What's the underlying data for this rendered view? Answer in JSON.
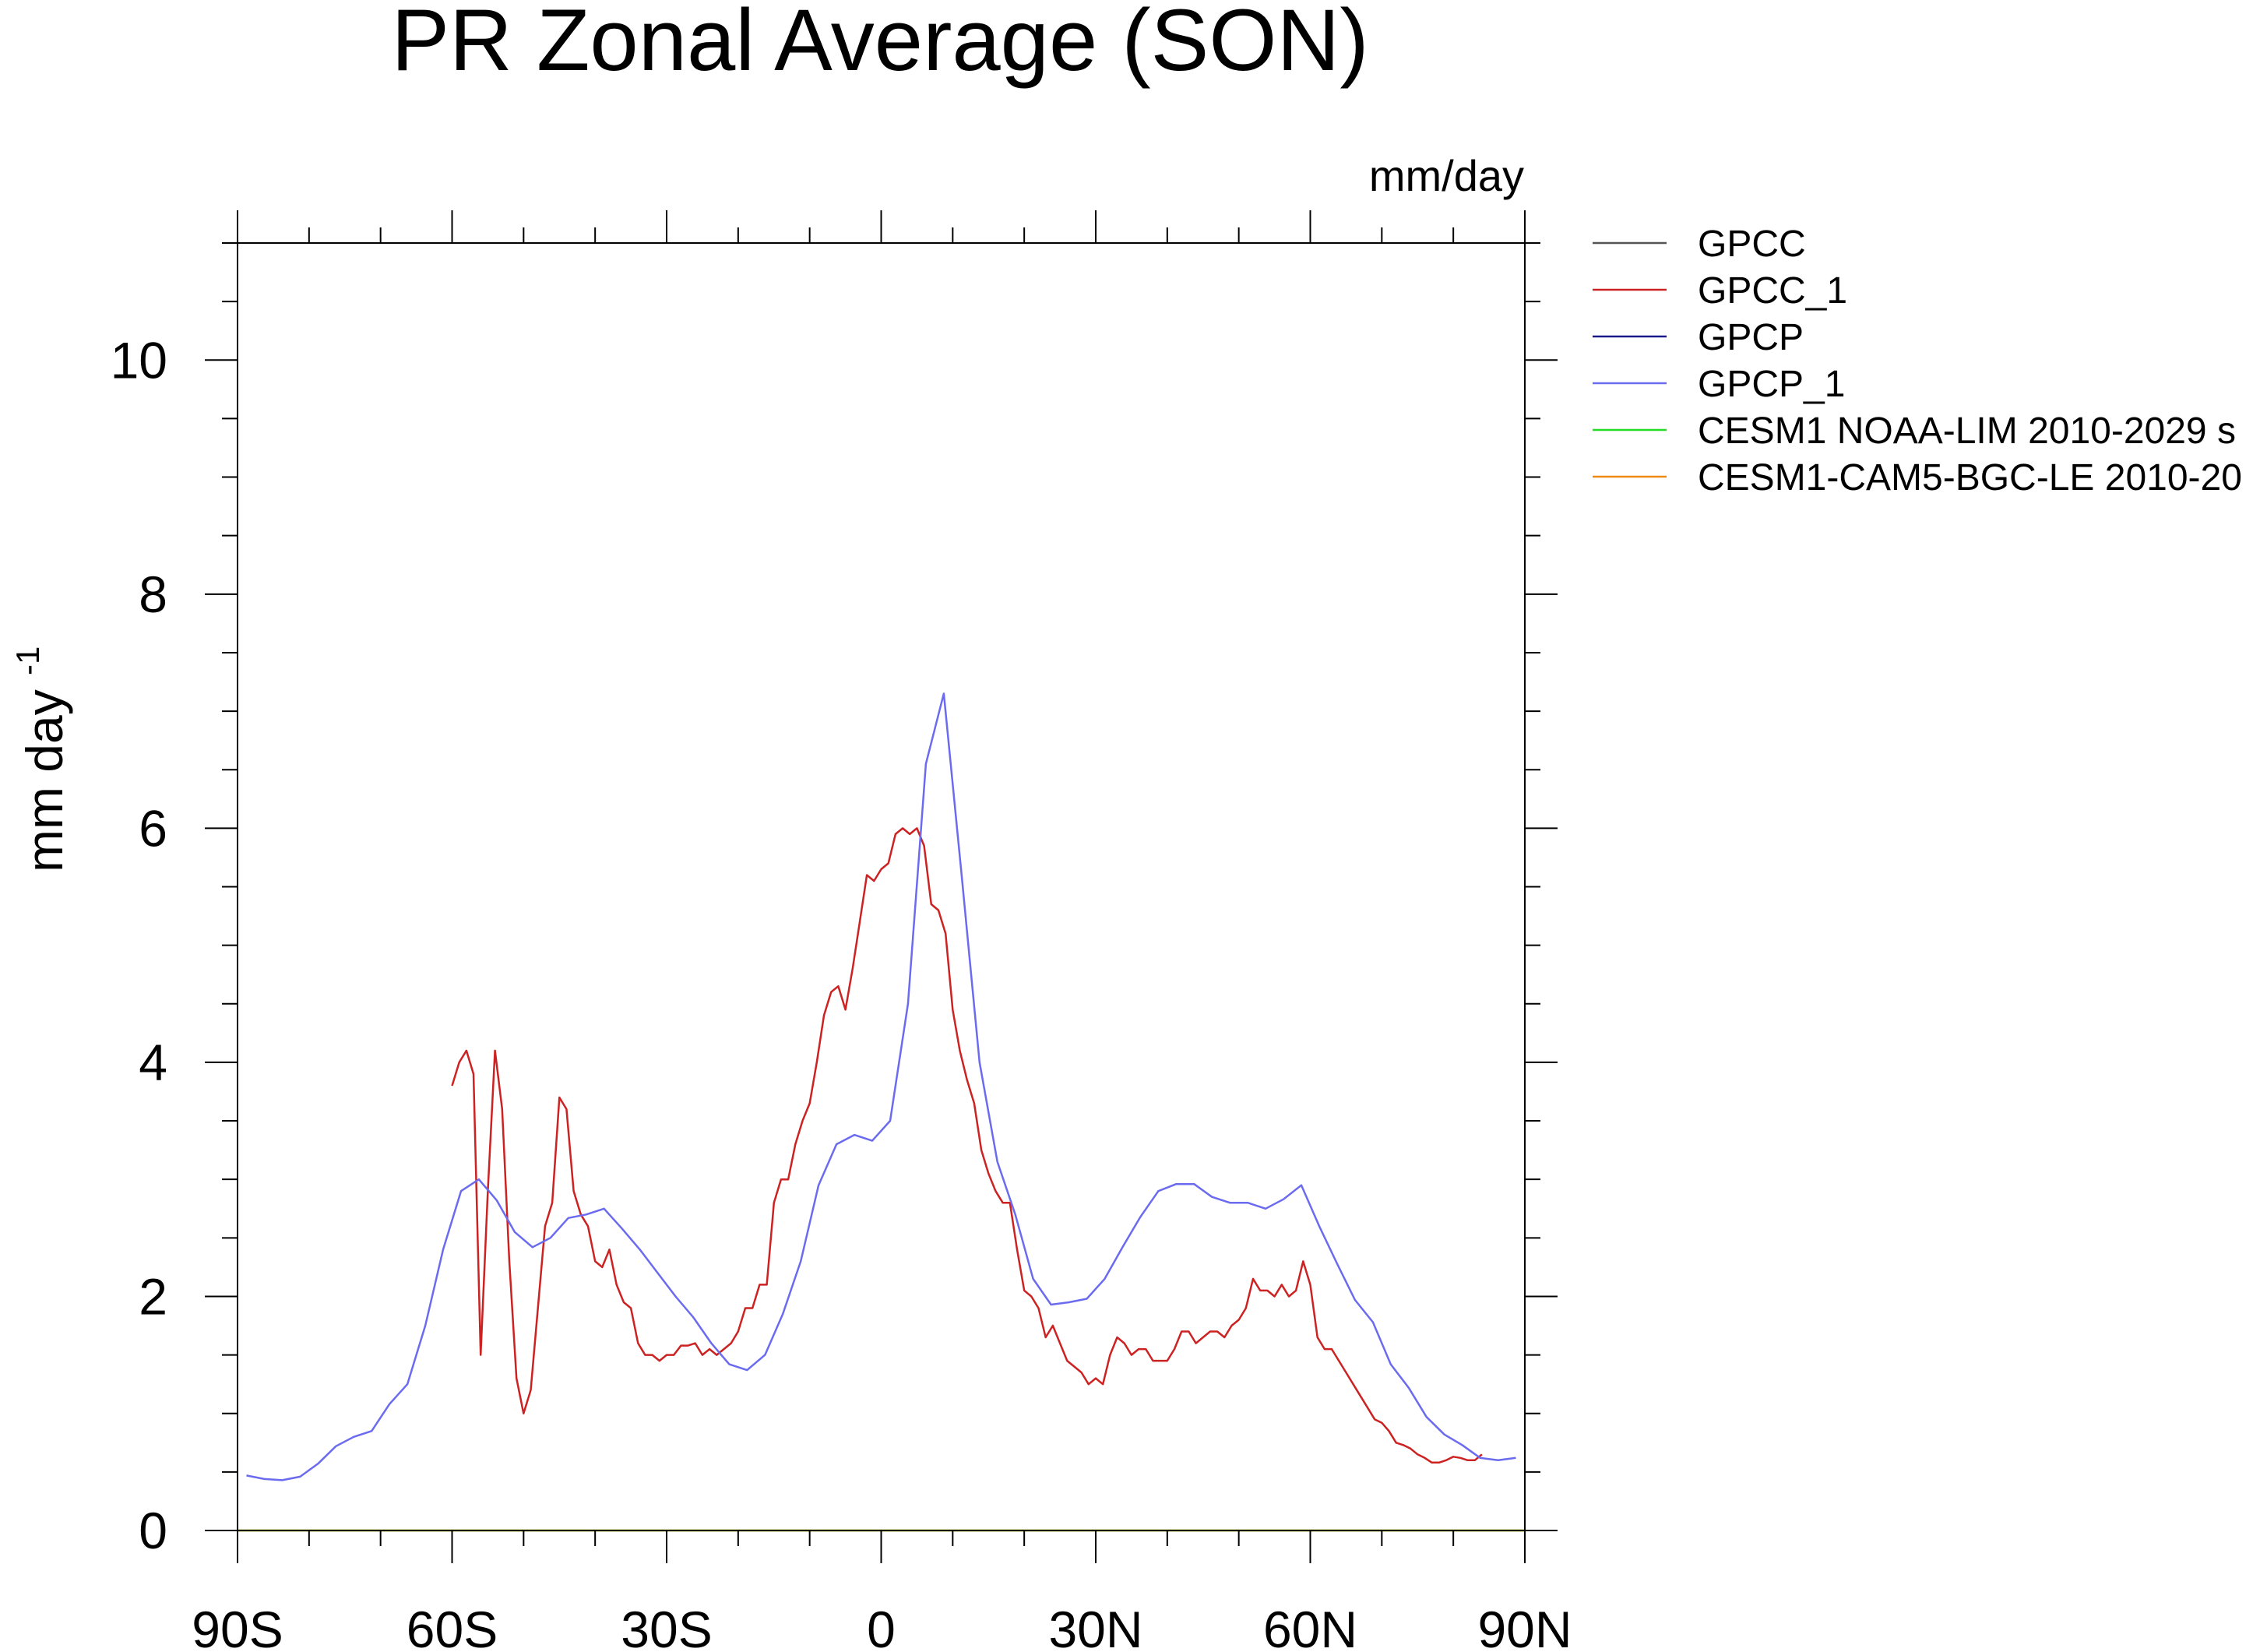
{
  "chart_data": {
    "type": "line",
    "title": "PR Zonal Average (SON)",
    "units_label": "mm/day",
    "ylabel_main": "mm day",
    "ylabel_sup": "-1",
    "xlabel": "",
    "xlim": [
      -90,
      90
    ],
    "ylim": [
      0,
      11
    ],
    "x_ticks": [
      -90,
      -60,
      -30,
      0,
      30,
      60,
      90
    ],
    "x_tick_labels": [
      "90S",
      "60S",
      "30S",
      "0",
      "30N",
      "60N",
      "90N"
    ],
    "y_ticks": [
      0,
      2,
      4,
      6,
      8,
      10
    ],
    "y_tick_labels": [
      "0",
      "2",
      "4",
      "6",
      "8",
      "10"
    ],
    "grid": false,
    "legend_position": "outside-right-top",
    "series": [
      {
        "name": "GPCC",
        "color": "#555555",
        "x": [],
        "y": []
      },
      {
        "name": "GPCC_1",
        "color": "#cc2222",
        "x": [
          -60,
          -59,
          -58,
          -57,
          -56,
          -55,
          -54,
          -53,
          -52,
          -51,
          -50,
          -49,
          -48,
          -47,
          -46,
          -45,
          -44,
          -43,
          -42,
          -41,
          -40,
          -39,
          -38,
          -37,
          -36,
          -35,
          -34,
          -33,
          -32,
          -31,
          -30,
          -29,
          -28,
          -27,
          -26,
          -25,
          -24,
          -23,
          -22,
          -21,
          -20,
          -19,
          -18,
          -17,
          -16,
          -15,
          -14,
          -13,
          -12,
          -11,
          -10,
          -9,
          -8,
          -7,
          -6,
          -5,
          -4,
          -3,
          -2,
          -1,
          0,
          1,
          2,
          3,
          4,
          5,
          6,
          7,
          8,
          9,
          10,
          11,
          12,
          13,
          14,
          15,
          16,
          17,
          18,
          19,
          20,
          21,
          22,
          23,
          24,
          25,
          26,
          27,
          28,
          29,
          30,
          31,
          32,
          33,
          34,
          35,
          36,
          37,
          38,
          39,
          40,
          41,
          42,
          43,
          44,
          45,
          46,
          47,
          48,
          49,
          50,
          51,
          52,
          53,
          54,
          55,
          56,
          57,
          58,
          59,
          60,
          61,
          62,
          63,
          64,
          65,
          66,
          67,
          68,
          69,
          70,
          71,
          72,
          73,
          74,
          75,
          76,
          77,
          78,
          79,
          80,
          81,
          82,
          83,
          84
        ],
        "y": [
          3.8,
          4.0,
          4.1,
          3.9,
          1.5,
          2.9,
          4.1,
          3.6,
          2.3,
          1.3,
          1.0,
          1.2,
          1.9,
          2.6,
          2.8,
          3.7,
          3.6,
          2.9,
          2.7,
          2.6,
          2.3,
          2.25,
          2.4,
          2.1,
          1.95,
          1.9,
          1.6,
          1.5,
          1.5,
          1.45,
          1.5,
          1.5,
          1.58,
          1.58,
          1.6,
          1.5,
          1.55,
          1.5,
          1.55,
          1.6,
          1.7,
          1.9,
          1.9,
          2.1,
          2.1,
          2.8,
          3.0,
          3.0,
          3.3,
          3.5,
          3.65,
          4.0,
          4.4,
          4.6,
          4.65,
          4.45,
          4.8,
          5.2,
          5.6,
          5.55,
          5.65,
          5.7,
          5.95,
          6.0,
          5.95,
          6.0,
          5.85,
          5.35,
          5.3,
          5.1,
          4.45,
          4.1,
          3.85,
          3.65,
          3.25,
          3.05,
          2.9,
          2.8,
          2.8,
          2.4,
          2.05,
          2.0,
          1.9,
          1.65,
          1.75,
          1.6,
          1.45,
          1.4,
          1.35,
          1.25,
          1.3,
          1.25,
          1.5,
          1.65,
          1.6,
          1.5,
          1.55,
          1.55,
          1.45,
          1.45,
          1.45,
          1.55,
          1.7,
          1.7,
          1.6,
          1.65,
          1.7,
          1.7,
          1.65,
          1.75,
          1.8,
          1.9,
          2.15,
          2.05,
          2.05,
          2.0,
          2.1,
          2.0,
          2.05,
          2.3,
          2.1,
          1.65,
          1.55,
          1.55,
          1.45,
          1.35,
          1.25,
          1.15,
          1.05,
          0.95,
          0.92,
          0.85,
          0.75,
          0.73,
          0.7,
          0.65,
          0.62,
          0.58,
          0.58,
          0.6,
          0.63,
          0.62,
          0.6,
          0.6,
          0.65
        ]
      },
      {
        "name": "GPCP",
        "color": "#1a1a8c",
        "x": [],
        "y": []
      },
      {
        "name": "GPCP_1",
        "color": "#6b6bf0",
        "x": [
          -88.75,
          -86.25,
          -83.75,
          -81.25,
          -78.75,
          -76.25,
          -73.75,
          -71.25,
          -68.75,
          -66.25,
          -63.75,
          -61.25,
          -58.75,
          -56.25,
          -53.75,
          -51.25,
          -48.75,
          -46.25,
          -43.75,
          -41.25,
          -38.75,
          -36.25,
          -33.75,
          -31.25,
          -28.75,
          -26.25,
          -23.75,
          -21.25,
          -18.75,
          -16.25,
          -13.75,
          -11.25,
          -8.75,
          -6.25,
          -3.75,
          -1.25,
          1.25,
          3.75,
          6.25,
          8.75,
          11.25,
          13.75,
          16.25,
          18.75,
          21.25,
          23.75,
          26.25,
          28.75,
          31.25,
          33.75,
          36.25,
          38.75,
          41.25,
          43.75,
          46.25,
          48.75,
          51.25,
          53.75,
          56.25,
          58.75,
          61.25,
          63.75,
          66.25,
          68.75,
          71.25,
          73.75,
          76.25,
          78.75,
          81.25,
          83.75,
          86.25,
          88.75
        ],
        "y": [
          0.47,
          0.44,
          0.43,
          0.46,
          0.57,
          0.72,
          0.8,
          0.85,
          1.08,
          1.25,
          1.75,
          2.4,
          2.9,
          3.0,
          2.82,
          2.55,
          2.42,
          2.5,
          2.67,
          2.7,
          2.75,
          2.58,
          2.4,
          2.2,
          2.0,
          1.82,
          1.6,
          1.42,
          1.37,
          1.5,
          1.85,
          2.3,
          2.95,
          3.3,
          3.38,
          3.33,
          3.5,
          4.5,
          6.55,
          7.15,
          5.6,
          4.0,
          3.15,
          2.7,
          2.15,
          1.93,
          1.95,
          1.98,
          2.15,
          2.42,
          2.68,
          2.9,
          2.96,
          2.96,
          2.85,
          2.8,
          2.8,
          2.75,
          2.83,
          2.95,
          2.6,
          2.28,
          1.97,
          1.78,
          1.42,
          1.22,
          0.97,
          0.82,
          0.73,
          0.62,
          0.6,
          0.62
        ]
      },
      {
        "name": "CESM1 NOAA-LIM 2010-2029 s",
        "color": "#22dd22",
        "x": [
          -90,
          90
        ],
        "y": [
          0,
          0
        ]
      },
      {
        "name": "CESM1-CAM5-BGC-LE 2010-20",
        "color": "#ee8a11",
        "x": [
          -90,
          90
        ],
        "y": [
          0,
          0
        ]
      }
    ]
  }
}
